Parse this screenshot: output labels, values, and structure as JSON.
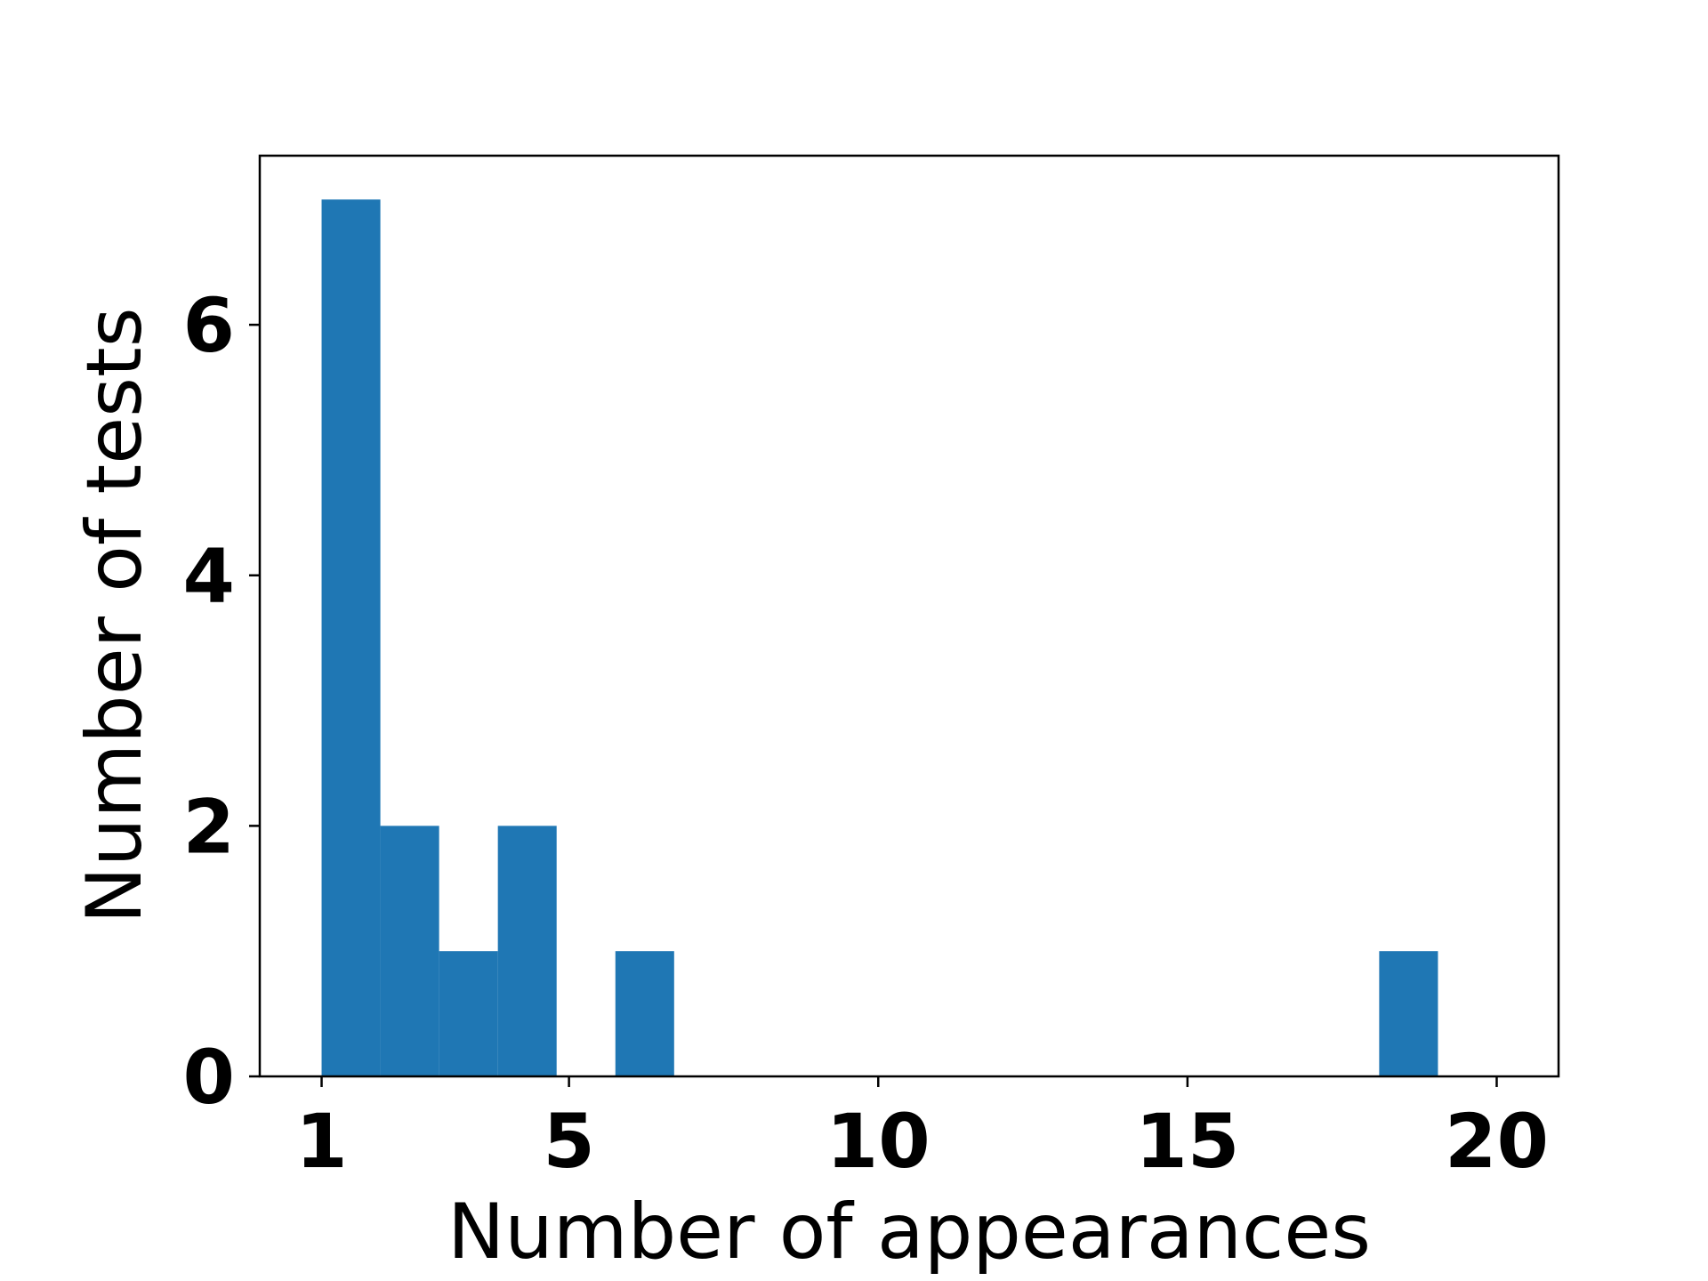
{
  "chart_data": {
    "type": "bar",
    "subtype": "histogram",
    "xlabel": "Number of appearances",
    "ylabel": "Number of tests",
    "xlim": [
      0,
      21
    ],
    "ylim": [
      0,
      7.35
    ],
    "x_ticks": [
      1,
      5,
      10,
      15,
      20
    ],
    "y_ticks": [
      0,
      2,
      4,
      6
    ],
    "grid": false,
    "bar_color": "#1f77b4",
    "bins": [
      {
        "start": 1.0,
        "end": 1.95,
        "count": 7
      },
      {
        "start": 1.95,
        "end": 2.9,
        "count": 2
      },
      {
        "start": 2.9,
        "end": 3.85,
        "count": 1
      },
      {
        "start": 3.85,
        "end": 4.8,
        "count": 2
      },
      {
        "start": 4.8,
        "end": 5.75,
        "count": 0
      },
      {
        "start": 5.75,
        "end": 6.7,
        "count": 1
      },
      {
        "start": 6.7,
        "end": 7.65,
        "count": 0
      },
      {
        "start": 7.65,
        "end": 8.6,
        "count": 0
      },
      {
        "start": 8.6,
        "end": 9.55,
        "count": 0
      },
      {
        "start": 9.55,
        "end": 10.5,
        "count": 0
      },
      {
        "start": 10.5,
        "end": 11.45,
        "count": 0
      },
      {
        "start": 11.45,
        "end": 12.4,
        "count": 0
      },
      {
        "start": 12.4,
        "end": 13.35,
        "count": 0
      },
      {
        "start": 13.35,
        "end": 14.3,
        "count": 0
      },
      {
        "start": 14.3,
        "end": 15.25,
        "count": 0
      },
      {
        "start": 15.25,
        "end": 16.2,
        "count": 0
      },
      {
        "start": 16.2,
        "end": 17.15,
        "count": 0
      },
      {
        "start": 17.15,
        "end": 18.1,
        "count": 0
      },
      {
        "start": 18.1,
        "end": 19.05,
        "count": 1
      },
      {
        "start": 19.05,
        "end": 20.0,
        "count": 0
      }
    ]
  }
}
